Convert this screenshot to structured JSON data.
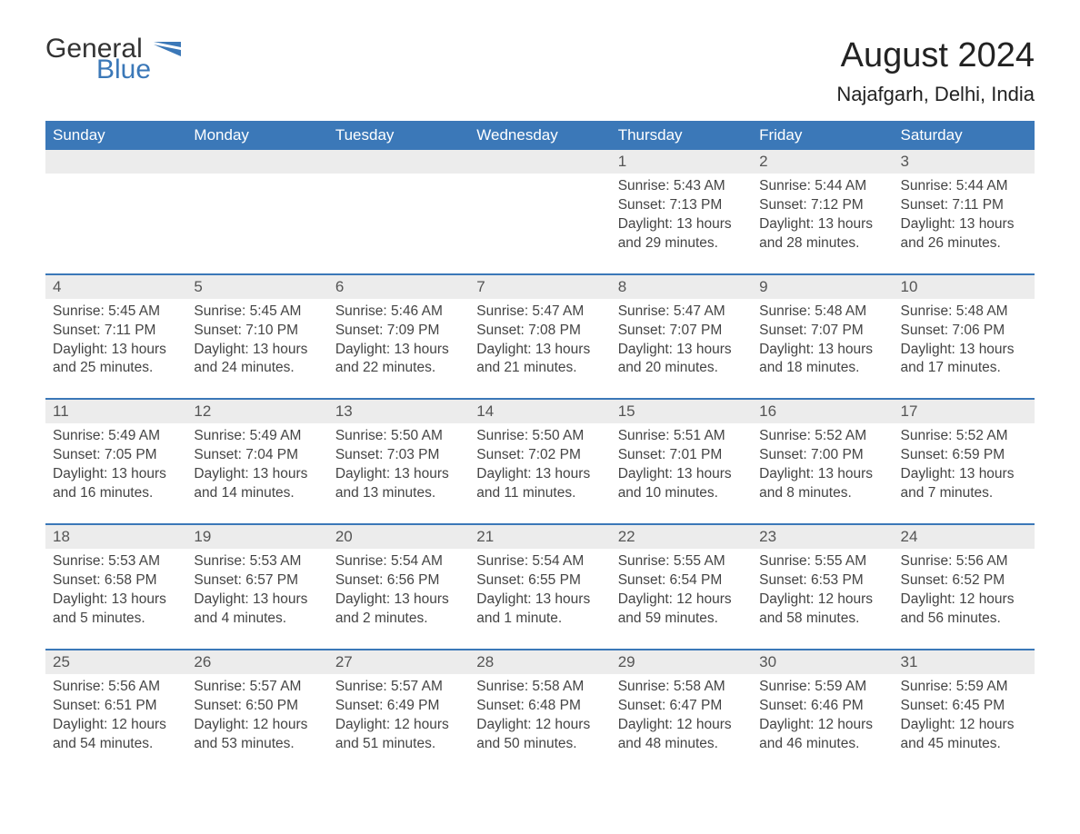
{
  "logo": {
    "word1": "General",
    "word2": "Blue",
    "flag_color": "#3b78b8",
    "text_color": "#333333"
  },
  "title": "August 2024",
  "location": "Najafgarh, Delhi, India",
  "colors": {
    "header_bg": "#3b78b8",
    "header_text": "#ffffff",
    "day_header_bg": "#ececec",
    "day_header_text": "#555555",
    "body_text": "#444444",
    "rule": "#3b78b8",
    "page_bg": "#ffffff"
  },
  "typography": {
    "title_fontsize": 38,
    "location_fontsize": 22,
    "weekday_fontsize": 17,
    "daynum_fontsize": 17,
    "body_fontsize": 15.5
  },
  "calendar": {
    "type": "table",
    "columns": [
      "Sunday",
      "Monday",
      "Tuesday",
      "Wednesday",
      "Thursday",
      "Friday",
      "Saturday"
    ],
    "rows": [
      [
        null,
        null,
        null,
        null,
        {
          "day": "1",
          "sunrise": "5:43 AM",
          "sunset": "7:13 PM",
          "daylight_h": 13,
          "daylight_m": 29
        },
        {
          "day": "2",
          "sunrise": "5:44 AM",
          "sunset": "7:12 PM",
          "daylight_h": 13,
          "daylight_m": 28
        },
        {
          "day": "3",
          "sunrise": "5:44 AM",
          "sunset": "7:11 PM",
          "daylight_h": 13,
          "daylight_m": 26
        }
      ],
      [
        {
          "day": "4",
          "sunrise": "5:45 AM",
          "sunset": "7:11 PM",
          "daylight_h": 13,
          "daylight_m": 25
        },
        {
          "day": "5",
          "sunrise": "5:45 AM",
          "sunset": "7:10 PM",
          "daylight_h": 13,
          "daylight_m": 24
        },
        {
          "day": "6",
          "sunrise": "5:46 AM",
          "sunset": "7:09 PM",
          "daylight_h": 13,
          "daylight_m": 22
        },
        {
          "day": "7",
          "sunrise": "5:47 AM",
          "sunset": "7:08 PM",
          "daylight_h": 13,
          "daylight_m": 21
        },
        {
          "day": "8",
          "sunrise": "5:47 AM",
          "sunset": "7:07 PM",
          "daylight_h": 13,
          "daylight_m": 20
        },
        {
          "day": "9",
          "sunrise": "5:48 AM",
          "sunset": "7:07 PM",
          "daylight_h": 13,
          "daylight_m": 18
        },
        {
          "day": "10",
          "sunrise": "5:48 AM",
          "sunset": "7:06 PM",
          "daylight_h": 13,
          "daylight_m": 17
        }
      ],
      [
        {
          "day": "11",
          "sunrise": "5:49 AM",
          "sunset": "7:05 PM",
          "daylight_h": 13,
          "daylight_m": 16
        },
        {
          "day": "12",
          "sunrise": "5:49 AM",
          "sunset": "7:04 PM",
          "daylight_h": 13,
          "daylight_m": 14
        },
        {
          "day": "13",
          "sunrise": "5:50 AM",
          "sunset": "7:03 PM",
          "daylight_h": 13,
          "daylight_m": 13
        },
        {
          "day": "14",
          "sunrise": "5:50 AM",
          "sunset": "7:02 PM",
          "daylight_h": 13,
          "daylight_m": 11
        },
        {
          "day": "15",
          "sunrise": "5:51 AM",
          "sunset": "7:01 PM",
          "daylight_h": 13,
          "daylight_m": 10
        },
        {
          "day": "16",
          "sunrise": "5:52 AM",
          "sunset": "7:00 PM",
          "daylight_h": 13,
          "daylight_m": 8
        },
        {
          "day": "17",
          "sunrise": "5:52 AM",
          "sunset": "6:59 PM",
          "daylight_h": 13,
          "daylight_m": 7
        }
      ],
      [
        {
          "day": "18",
          "sunrise": "5:53 AM",
          "sunset": "6:58 PM",
          "daylight_h": 13,
          "daylight_m": 5
        },
        {
          "day": "19",
          "sunrise": "5:53 AM",
          "sunset": "6:57 PM",
          "daylight_h": 13,
          "daylight_m": 4
        },
        {
          "day": "20",
          "sunrise": "5:54 AM",
          "sunset": "6:56 PM",
          "daylight_h": 13,
          "daylight_m": 2
        },
        {
          "day": "21",
          "sunrise": "5:54 AM",
          "sunset": "6:55 PM",
          "daylight_h": 13,
          "daylight_m": 1
        },
        {
          "day": "22",
          "sunrise": "5:55 AM",
          "sunset": "6:54 PM",
          "daylight_h": 12,
          "daylight_m": 59
        },
        {
          "day": "23",
          "sunrise": "5:55 AM",
          "sunset": "6:53 PM",
          "daylight_h": 12,
          "daylight_m": 58
        },
        {
          "day": "24",
          "sunrise": "5:56 AM",
          "sunset": "6:52 PM",
          "daylight_h": 12,
          "daylight_m": 56
        }
      ],
      [
        {
          "day": "25",
          "sunrise": "5:56 AM",
          "sunset": "6:51 PM",
          "daylight_h": 12,
          "daylight_m": 54
        },
        {
          "day": "26",
          "sunrise": "5:57 AM",
          "sunset": "6:50 PM",
          "daylight_h": 12,
          "daylight_m": 53
        },
        {
          "day": "27",
          "sunrise": "5:57 AM",
          "sunset": "6:49 PM",
          "daylight_h": 12,
          "daylight_m": 51
        },
        {
          "day": "28",
          "sunrise": "5:58 AM",
          "sunset": "6:48 PM",
          "daylight_h": 12,
          "daylight_m": 50
        },
        {
          "day": "29",
          "sunrise": "5:58 AM",
          "sunset": "6:47 PM",
          "daylight_h": 12,
          "daylight_m": 48
        },
        {
          "day": "30",
          "sunrise": "5:59 AM",
          "sunset": "6:46 PM",
          "daylight_h": 12,
          "daylight_m": 46
        },
        {
          "day": "31",
          "sunrise": "5:59 AM",
          "sunset": "6:45 PM",
          "daylight_h": 12,
          "daylight_m": 45
        }
      ]
    ]
  },
  "labels": {
    "sunrise": "Sunrise:",
    "sunset": "Sunset:",
    "daylight": "Daylight:",
    "hours": "hours",
    "and": "and",
    "minute": "minute",
    "minutes": "minutes"
  }
}
